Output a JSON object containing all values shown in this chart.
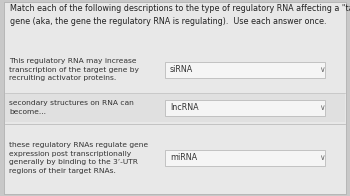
{
  "title": "Match each of the following descriptions to the type of regulatory RNA affecting a \"target\"\ngene (aka, the gene the regulatory RNA is regulating).  Use each answer once.",
  "page_bg": "#c8c8c8",
  "card_bg": "#e8e8e8",
  "row_bg": "#e8e8e8",
  "row_alt_bg": "#e0e0e0",
  "answer_box_bg": "#f5f5f5",
  "answer_box_border": "#bbbbbb",
  "separator_color": "#c0c0c0",
  "rows": [
    {
      "description": "This regulatory RNA may increase\ntranscription of the target gene by\nrecruiting activator proteins.",
      "answer": "siRNA",
      "lines": 3
    },
    {
      "description": "secondary structures on RNA can\nbecome...",
      "answer": "lncRNA",
      "lines": 2
    },
    {
      "description": "these regulatory RNAs regulate gene\nexpression post transcriptionally\ngenerally by binding to the 3’-UTR\nregions of their target RNAs.",
      "answer": "miRNA",
      "lines": 4
    }
  ],
  "title_fontsize": 5.8,
  "desc_fontsize": 5.4,
  "answer_fontsize": 5.8,
  "title_color": "#222222",
  "desc_color": "#333333",
  "answer_color": "#333333"
}
